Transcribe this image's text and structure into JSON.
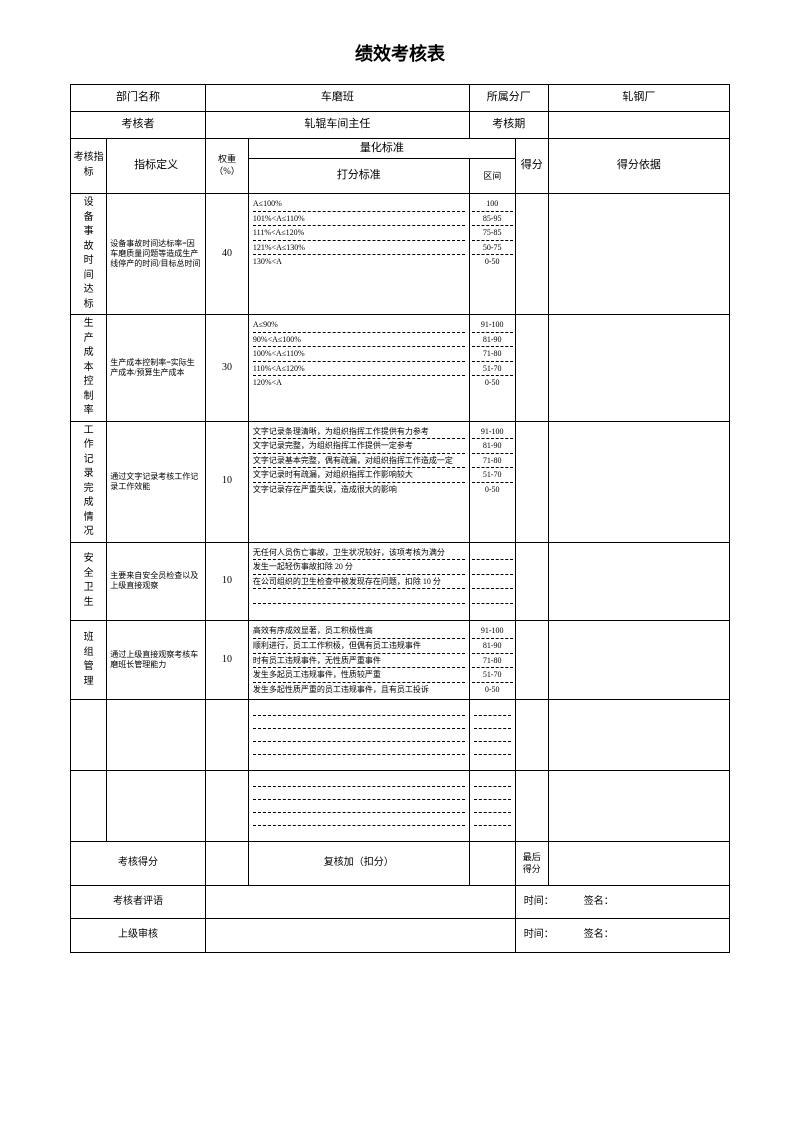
{
  "title": "绩效考核表",
  "header": {
    "dept_label": "部门名称",
    "dept_value": "车磨班",
    "branch_label": "所属分厂",
    "branch_value": "轧钢厂",
    "assessor_label": "考核者",
    "assessor_value": "轧辊车间主任",
    "period_label": "考核期",
    "period_value": ""
  },
  "columns": {
    "indicator": "考核指标",
    "definition": "指标定义",
    "weight": "权重（%）",
    "quant": "量化标准",
    "criteria": "打分标准",
    "range": "区间",
    "score": "得分",
    "basis": "得分依据"
  },
  "rows": [
    {
      "indicator": "设备事故时间达标",
      "definition": "设备事故时间达标率=因车磨质量问题等造成生产线停产的时间/目标总时间",
      "weight": "40",
      "criteria": [
        "A≤100%",
        "101%<A≤110%",
        "111%<A≤120%",
        "121%<A≤130%",
        "130%<A"
      ],
      "ranges": [
        "100",
        "85-95",
        "75-85",
        "50-75",
        "0-50"
      ]
    },
    {
      "indicator": "生产成本控制率",
      "definition": "生产成本控制率=实际生产成本/预算生产成本",
      "weight": "30",
      "criteria": [
        "A≤90%",
        "90%<A≤100%",
        "100%<A≤110%",
        "110%<A≤120%",
        "120%<A"
      ],
      "ranges": [
        "91-100",
        "81-90",
        "71-80",
        "51-70",
        "0-50"
      ]
    },
    {
      "indicator": "工作记录完成情况",
      "definition": "通过文字记录考核工作记录工作效能",
      "weight": "10",
      "criteria": [
        "文字记录条理清晰，为组织指挥工作提供有力参考",
        "文字记录完整，为组织指挥工作提供一定参考",
        "文字记录基本完整，偶有疏漏，对组织指挥工作造成一定",
        "文字记录时有疏漏，对组织指挥工作影响较大",
        "文字记录存在严重失误，造成很大的影响"
      ],
      "ranges": [
        "91-100",
        "81-90",
        "71-80",
        "51-70",
        "0-50"
      ]
    },
    {
      "indicator": "安全卫生",
      "definition": "主要来自安全员检查以及上级直接观察",
      "weight": "10",
      "criteria": [
        "无任何人员伤亡事故，卫生状况较好，该项考核为满分",
        "发生一起轻伤事故扣除 20 分",
        "在公司组织的卫生检查中被发现存在问题，扣除 10 分",
        "",
        ""
      ],
      "ranges": [
        "",
        "",
        "",
        "",
        ""
      ]
    },
    {
      "indicator": "班组管理",
      "definition": "通过上级直接观察考核车磨班长管理能力",
      "weight": "10",
      "criteria": [
        "高效有序成效显著，员工积极性高",
        "顺利进行，员工工作积极，但偶有员工违规事件",
        "时有员工违规事件，无性质严重事件",
        "发生多起员工违规事件，性质较严重",
        "发生多起性质严重的员工违规事件，且有员工投诉"
      ],
      "ranges": [
        "91-100",
        "81-90",
        "71-80",
        "51-70",
        "0-50"
      ]
    }
  ],
  "footer": {
    "score_label": "考核得分",
    "recheck_label": "复核加（扣分）",
    "final_label": "最后得分",
    "comment_label": "考核者评语",
    "review_label": "上级审核",
    "time_label": "时间：",
    "sign_label": "签名："
  }
}
